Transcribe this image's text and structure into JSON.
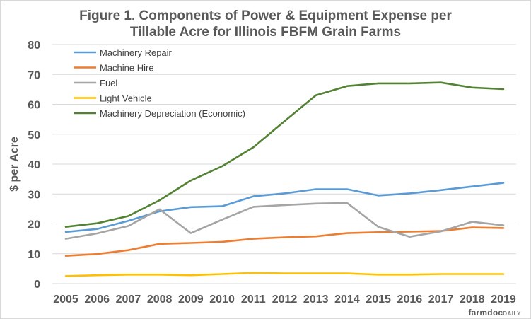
{
  "chart_data": {
    "type": "line",
    "title_line1": "Figure 1. Components of Power & Equipment Expense per",
    "title_line2": "Tillable Acre for Illinois  FBFM Grain Farms",
    "xlabel": "",
    "ylabel": "$ per Acre",
    "ylim": [
      0,
      80
    ],
    "yticks": [
      0,
      10,
      20,
      30,
      40,
      50,
      60,
      70,
      80
    ],
    "grid": true,
    "legend_position": "top-left",
    "categories": [
      "2005",
      "2006",
      "2007",
      "2008",
      "2009",
      "2010",
      "2011",
      "2012",
      "2013",
      "2014",
      "2015",
      "2016",
      "2017",
      "2018",
      "2019"
    ],
    "series": [
      {
        "name": "Machinery Repair",
        "color": "#5b9bd5",
        "values": [
          17.3,
          18.3,
          21.0,
          24.2,
          25.6,
          25.9,
          29.2,
          30.2,
          31.6,
          31.6,
          29.5,
          30.2,
          31.3,
          32.5,
          33.7
        ]
      },
      {
        "name": "Machine Hire",
        "color": "#ed7d31",
        "values": [
          9.3,
          9.9,
          11.2,
          13.3,
          13.6,
          14.0,
          15.0,
          15.5,
          15.8,
          16.9,
          17.2,
          17.4,
          17.6,
          18.8,
          18.6
        ]
      },
      {
        "name": "Fuel",
        "color": "#a5a5a5",
        "values": [
          15.0,
          16.8,
          19.3,
          24.9,
          16.9,
          21.4,
          25.7,
          26.3,
          26.8,
          27.0,
          19.0,
          15.7,
          17.5,
          20.7,
          19.5
        ]
      },
      {
        "name": "Light Vehicle",
        "color": "#ffc000",
        "values": [
          2.5,
          2.8,
          3.0,
          3.0,
          2.8,
          3.2,
          3.6,
          3.4,
          3.4,
          3.4,
          3.0,
          3.0,
          3.2,
          3.2,
          3.2
        ]
      },
      {
        "name": "Machinery Depreciation (Economic)",
        "color": "#548235",
        "values": [
          19.0,
          20.2,
          22.6,
          27.9,
          34.5,
          39.3,
          45.6,
          54.4,
          63.0,
          66.1,
          67.0,
          67.0,
          67.3,
          65.6,
          65.1
        ]
      }
    ]
  },
  "watermark": {
    "main": "farmdoc",
    "accent": "DAILY"
  }
}
